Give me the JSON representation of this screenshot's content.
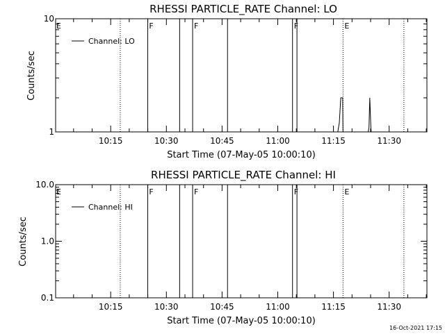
{
  "footer_timestamp": "16-Oct-2021 17:15",
  "chart_data": [
    {
      "type": "line",
      "title": "RHESSI PARTICLE_RATE Channel: LO",
      "xlabel": "Start Time (07-May-05 10:00:10)",
      "ylabel": "Counts/sec",
      "y_scale": "log",
      "ylim": [
        1,
        10
      ],
      "y_ticks": [
        {
          "value": 1,
          "label": "1"
        },
        {
          "value": 10,
          "label": "10"
        }
      ],
      "x_unit": "minutes since 10:00:10",
      "xlim": [
        0,
        100
      ],
      "x_ticks": [
        {
          "value": 14.83,
          "label": "10:15"
        },
        {
          "value": 29.83,
          "label": "10:30"
        },
        {
          "value": 44.83,
          "label": "10:45"
        },
        {
          "value": 59.83,
          "label": "11:00"
        },
        {
          "value": 74.83,
          "label": "11:15"
        },
        {
          "value": 89.83,
          "label": "11:30"
        }
      ],
      "legend": {
        "position": "top-left",
        "entries": [
          "Channel: LO"
        ]
      },
      "event_lines": [
        {
          "x": 17.4,
          "style": "dotted"
        },
        {
          "x": 24.8,
          "style": "solid",
          "label": "F"
        },
        {
          "x": 33.4,
          "style": "solid"
        },
        {
          "x": 36.9,
          "style": "solid",
          "label": "F"
        },
        {
          "x": 46.3,
          "style": "solid"
        },
        {
          "x": 63.8,
          "style": "solid",
          "label": "F"
        },
        {
          "x": 65.0,
          "style": "solid"
        },
        {
          "x": 77.4,
          "style": "dotted",
          "label": "E"
        },
        {
          "x": 93.8,
          "style": "dotted"
        }
      ],
      "edge_labels": [
        {
          "x": 0,
          "label": "E"
        }
      ],
      "series": [
        {
          "name": "Channel: LO",
          "x": [
            76.0,
            76.4,
            76.8,
            77.3,
            77.4,
            84.2,
            84.4,
            84.6,
            84.9,
            85.0
          ],
          "y": [
            1.0,
            1.2,
            2.0,
            2.0,
            1.0,
            1.0,
            1.1,
            2.0,
            1.1,
            1.0
          ]
        }
      ]
    },
    {
      "type": "line",
      "title": "RHESSI PARTICLE_RATE Channel: HI",
      "xlabel": "Start Time (07-May-05 10:00:10)",
      "ylabel": "Counts/sec",
      "y_scale": "log",
      "ylim": [
        0.1,
        10
      ],
      "y_ticks": [
        {
          "value": 0.1,
          "label": "0.1"
        },
        {
          "value": 1,
          "label": "1.0"
        },
        {
          "value": 10,
          "label": "10.0"
        }
      ],
      "x_unit": "minutes since 10:00:10",
      "xlim": [
        0,
        100
      ],
      "x_ticks": [
        {
          "value": 14.83,
          "label": "10:15"
        },
        {
          "value": 29.83,
          "label": "10:30"
        },
        {
          "value": 44.83,
          "label": "10:45"
        },
        {
          "value": 59.83,
          "label": "11:00"
        },
        {
          "value": 74.83,
          "label": "11:15"
        },
        {
          "value": 89.83,
          "label": "11:30"
        }
      ],
      "legend": {
        "position": "top-left",
        "entries": [
          "Channel: HI"
        ]
      },
      "event_lines": [
        {
          "x": 17.4,
          "style": "dotted"
        },
        {
          "x": 24.8,
          "style": "solid",
          "label": "F"
        },
        {
          "x": 33.4,
          "style": "solid"
        },
        {
          "x": 36.9,
          "style": "solid",
          "label": "F"
        },
        {
          "x": 46.3,
          "style": "solid"
        },
        {
          "x": 63.8,
          "style": "solid",
          "label": "F"
        },
        {
          "x": 65.0,
          "style": "solid"
        },
        {
          "x": 77.4,
          "style": "dotted",
          "label": "E"
        },
        {
          "x": 93.8,
          "style": "dotted"
        }
      ],
      "edge_labels": [
        {
          "x": 0,
          "label": "E"
        }
      ],
      "series": [
        {
          "name": "Channel: HI",
          "x": [],
          "y": []
        }
      ]
    }
  ]
}
